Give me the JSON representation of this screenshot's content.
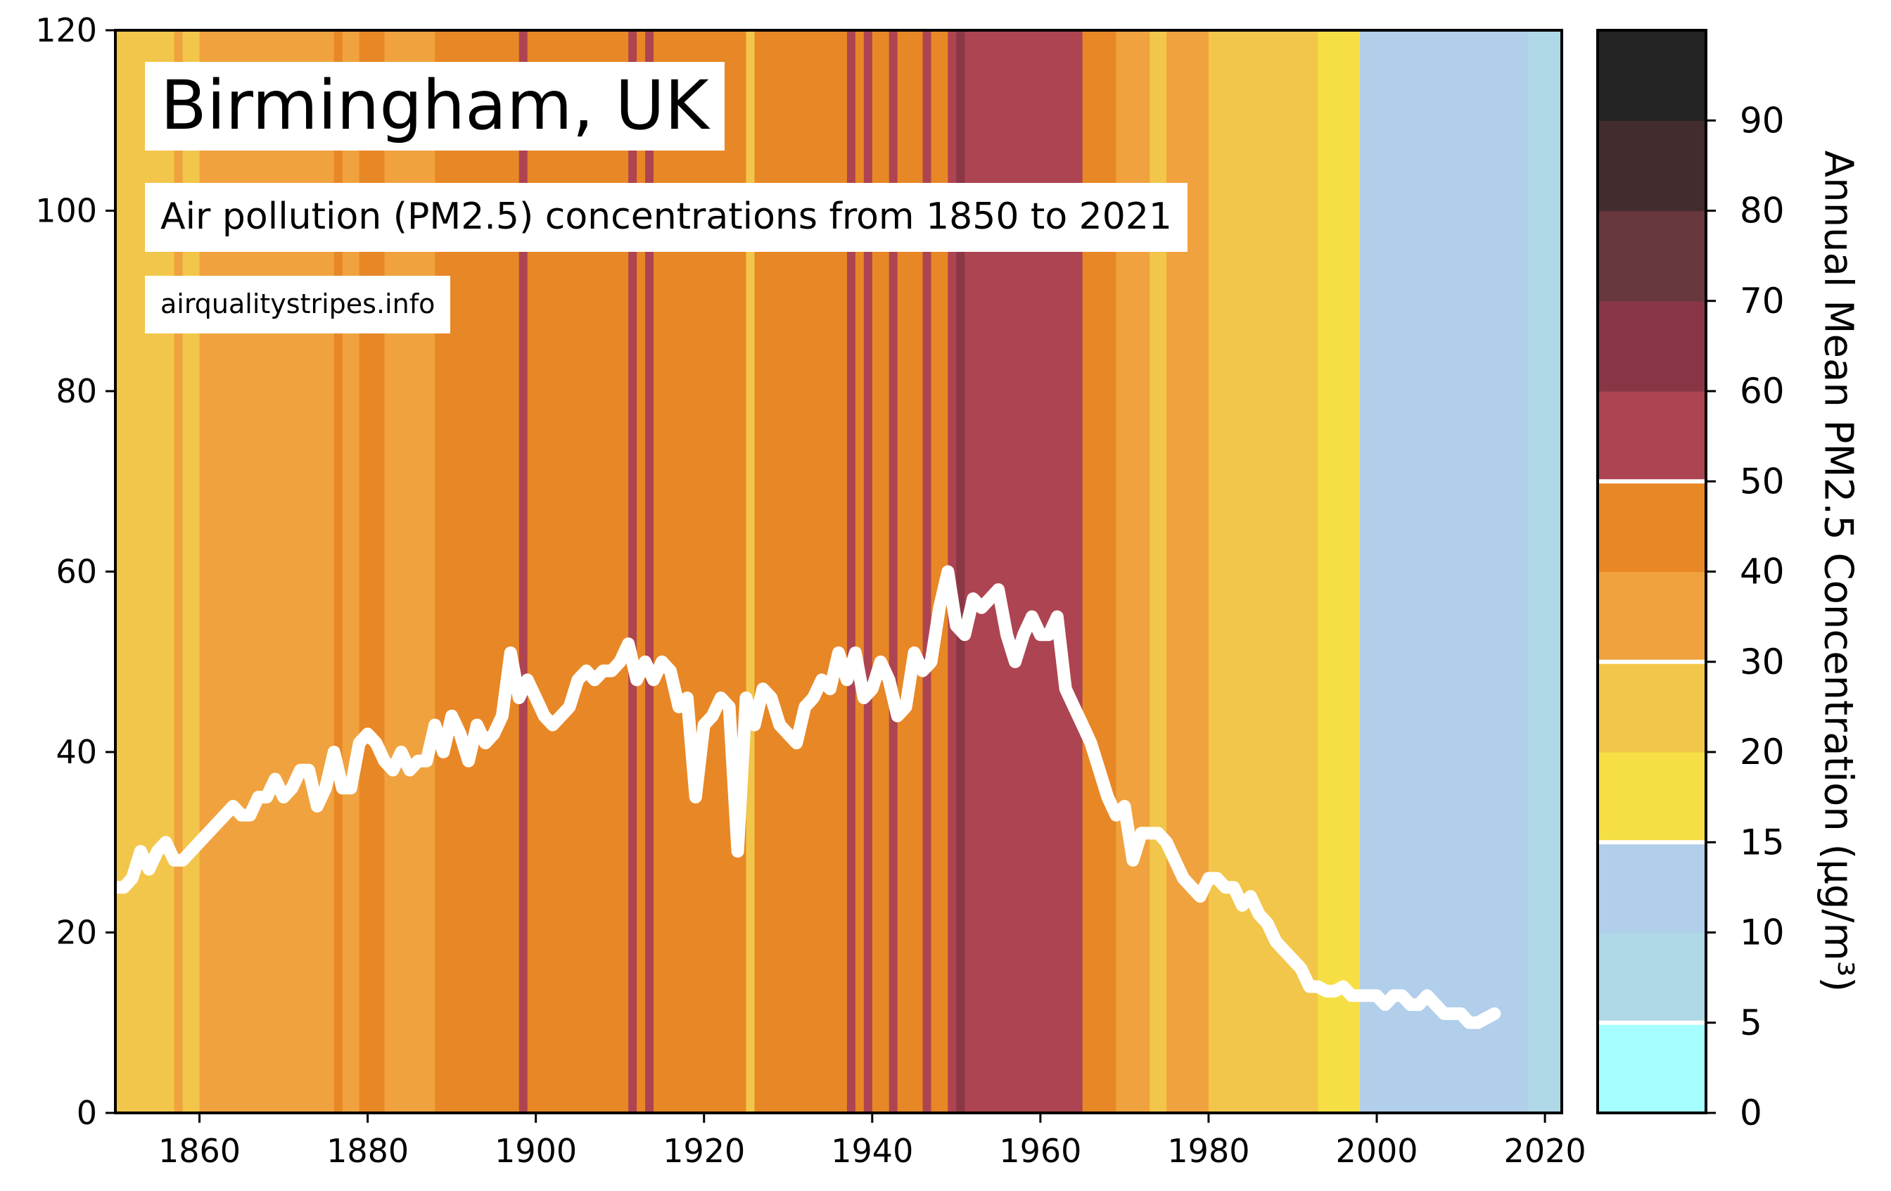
{
  "chart_data": {
    "type": "line",
    "title": "Birmingham, UK",
    "subtitle": "Air pollution (PM2.5) concentrations from 1850 to 2021",
    "source": "airqualitystripes.info",
    "xlim": [
      1850,
      2022
    ],
    "ylim": [
      0,
      120
    ],
    "xticks": [
      1860,
      1880,
      1900,
      1920,
      1940,
      1960,
      1980,
      2000,
      2020
    ],
    "yticks": [
      0,
      20,
      40,
      60,
      80,
      100,
      120
    ],
    "x_start": 1850,
    "values": [
      25,
      25,
      26,
      29,
      27,
      29,
      30,
      28,
      28,
      29,
      30,
      31,
      32,
      33,
      34,
      33,
      33,
      35,
      35,
      37,
      35,
      36,
      38,
      38,
      34,
      36,
      40,
      36,
      36,
      41,
      42,
      41,
      39,
      38,
      40,
      38,
      39,
      39,
      43,
      40,
      44,
      42,
      39,
      43,
      41,
      42,
      44,
      51,
      46,
      48,
      46,
      44,
      43,
      44,
      45,
      48,
      49,
      48,
      49,
      49,
      50,
      52,
      48,
      50,
      48,
      50,
      49,
      45,
      46,
      35,
      43,
      44,
      46,
      45,
      29,
      46,
      43,
      47,
      46,
      43,
      42,
      41,
      45,
      46,
      48,
      47,
      51,
      48,
      51,
      46,
      47,
      50,
      48,
      44,
      45,
      51,
      49,
      50,
      56,
      60,
      54,
      53,
      57,
      56,
      57,
      58,
      53,
      50,
      53,
      55,
      53,
      53,
      55,
      47,
      45,
      43,
      41,
      38,
      35,
      33,
      34,
      28,
      31,
      31,
      31,
      30,
      28,
      26,
      25,
      24,
      26,
      26,
      25,
      25,
      23,
      24,
      22,
      21,
      19,
      18,
      17,
      16,
      14,
      14,
      13.5,
      13.5,
      14,
      13,
      13,
      13,
      13,
      12,
      13,
      13,
      12,
      12,
      13,
      12,
      11,
      11,
      11,
      10,
      10,
      10.5,
      11
    ],
    "line_color": "#ffffff",
    "stripes": [
      [
        1850,
        1857,
        "#f2c64a"
      ],
      [
        1857,
        1858,
        "#f0a23e"
      ],
      [
        1858,
        1860,
        "#f2c64a"
      ],
      [
        1860,
        1876,
        "#f0a23e"
      ],
      [
        1876,
        1877,
        "#e88726"
      ],
      [
        1877,
        1879,
        "#f0a23e"
      ],
      [
        1879,
        1882,
        "#e88726"
      ],
      [
        1882,
        1888,
        "#f0a23e"
      ],
      [
        1888,
        1898,
        "#e88726"
      ],
      [
        1898,
        1899,
        "#ad4451"
      ],
      [
        1899,
        1911,
        "#e88726"
      ],
      [
        1911,
        1912,
        "#ad4451"
      ],
      [
        1912,
        1913,
        "#e88726"
      ],
      [
        1913,
        1914,
        "#ad4451"
      ],
      [
        1914,
        1925,
        "#e88726"
      ],
      [
        1925,
        1926,
        "#f2c64a"
      ],
      [
        1926,
        1937,
        "#e88726"
      ],
      [
        1937,
        1938,
        "#ad4451"
      ],
      [
        1938,
        1939,
        "#e88726"
      ],
      [
        1939,
        1940,
        "#ad4451"
      ],
      [
        1940,
        1942,
        "#e88726"
      ],
      [
        1942,
        1943,
        "#ad4451"
      ],
      [
        1943,
        1946,
        "#e88726"
      ],
      [
        1946,
        1947,
        "#ad4451"
      ],
      [
        1947,
        1949,
        "#e88726"
      ],
      [
        1949,
        1950,
        "#ad4451"
      ],
      [
        1950,
        1951,
        "#8a3746"
      ],
      [
        1951,
        1965,
        "#ad4451"
      ],
      [
        1965,
        1969,
        "#e88726"
      ],
      [
        1969,
        1973,
        "#f0a23e"
      ],
      [
        1973,
        1975,
        "#f2c64a"
      ],
      [
        1975,
        1980,
        "#f0a23e"
      ],
      [
        1980,
        1993,
        "#f2c64a"
      ],
      [
        1993,
        1998,
        "#f6df44"
      ],
      [
        1998,
        2018,
        "#b1ceeb"
      ],
      [
        2018,
        2022,
        "#aed8e6"
      ]
    ],
    "colorbar": {
      "label": "Annual Mean PM2.5 Concentration (μg/m³)",
      "tick_labels": [
        "0",
        "5",
        "10",
        "15",
        "20",
        "30",
        "40",
        "50",
        "60",
        "70",
        "80",
        "90"
      ],
      "bands": [
        "#a6fffe",
        "#aed8e6",
        "#b1ceeb",
        "#f6df44",
        "#f2c64a",
        "#f0a23e",
        "#e88726",
        "#ad4451",
        "#883646",
        "#68383d",
        "#432c2e",
        "#232323"
      ],
      "separator_after_band": [
        0,
        2,
        4,
        6
      ],
      "separator_color": "#ffffff"
    }
  }
}
